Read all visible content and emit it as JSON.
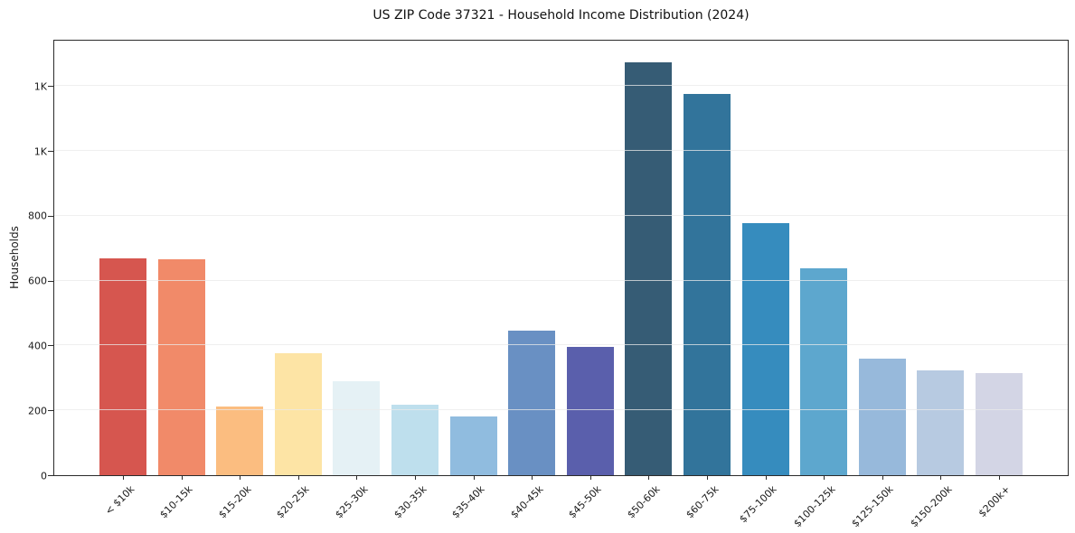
{
  "chart_data": {
    "type": "bar",
    "title": "US ZIP Code 37321 - Household Income Distribution (2024)",
    "xlabel": "",
    "ylabel": "Households",
    "categories": [
      "< $10k",
      "$10-15k",
      "$15-20k",
      "$20-25k",
      "$25-30k",
      "$30-35k",
      "$35-40k",
      "$40-45k",
      "$45-50k",
      "$50-60k",
      "$60-75k",
      "$75-100k",
      "$100-125k",
      "$125-150k",
      "$150-200k",
      "$200k+"
    ],
    "values": [
      670,
      667,
      211,
      376,
      291,
      217,
      181,
      446,
      397,
      1274,
      1175,
      776,
      638,
      360,
      324,
      316
    ],
    "bar_colors": [
      "#d6564f",
      "#f18a69",
      "#fbbd80",
      "#fde4a5",
      "#e5f1f5",
      "#bedfed",
      "#90bcdf",
      "#6990c3",
      "#5a5fac",
      "#365c75",
      "#32749b",
      "#368cbe",
      "#5da7ce",
      "#97b9db",
      "#b7cae1",
      "#d3d5e5"
    ],
    "ylim": [
      0,
      1340
    ],
    "yticks": [
      {
        "value": 0,
        "label": "0"
      },
      {
        "value": 200,
        "label": "200"
      },
      {
        "value": 400,
        "label": "400"
      },
      {
        "value": 600,
        "label": "600"
      },
      {
        "value": 800,
        "label": "800"
      },
      {
        "value": 1000,
        "label": "1K"
      },
      {
        "value": 1200,
        "label": "1K"
      }
    ],
    "grid": "horizontal",
    "grid_color": "#e9e9e9",
    "legend": "none",
    "background": "#ffffff"
  }
}
